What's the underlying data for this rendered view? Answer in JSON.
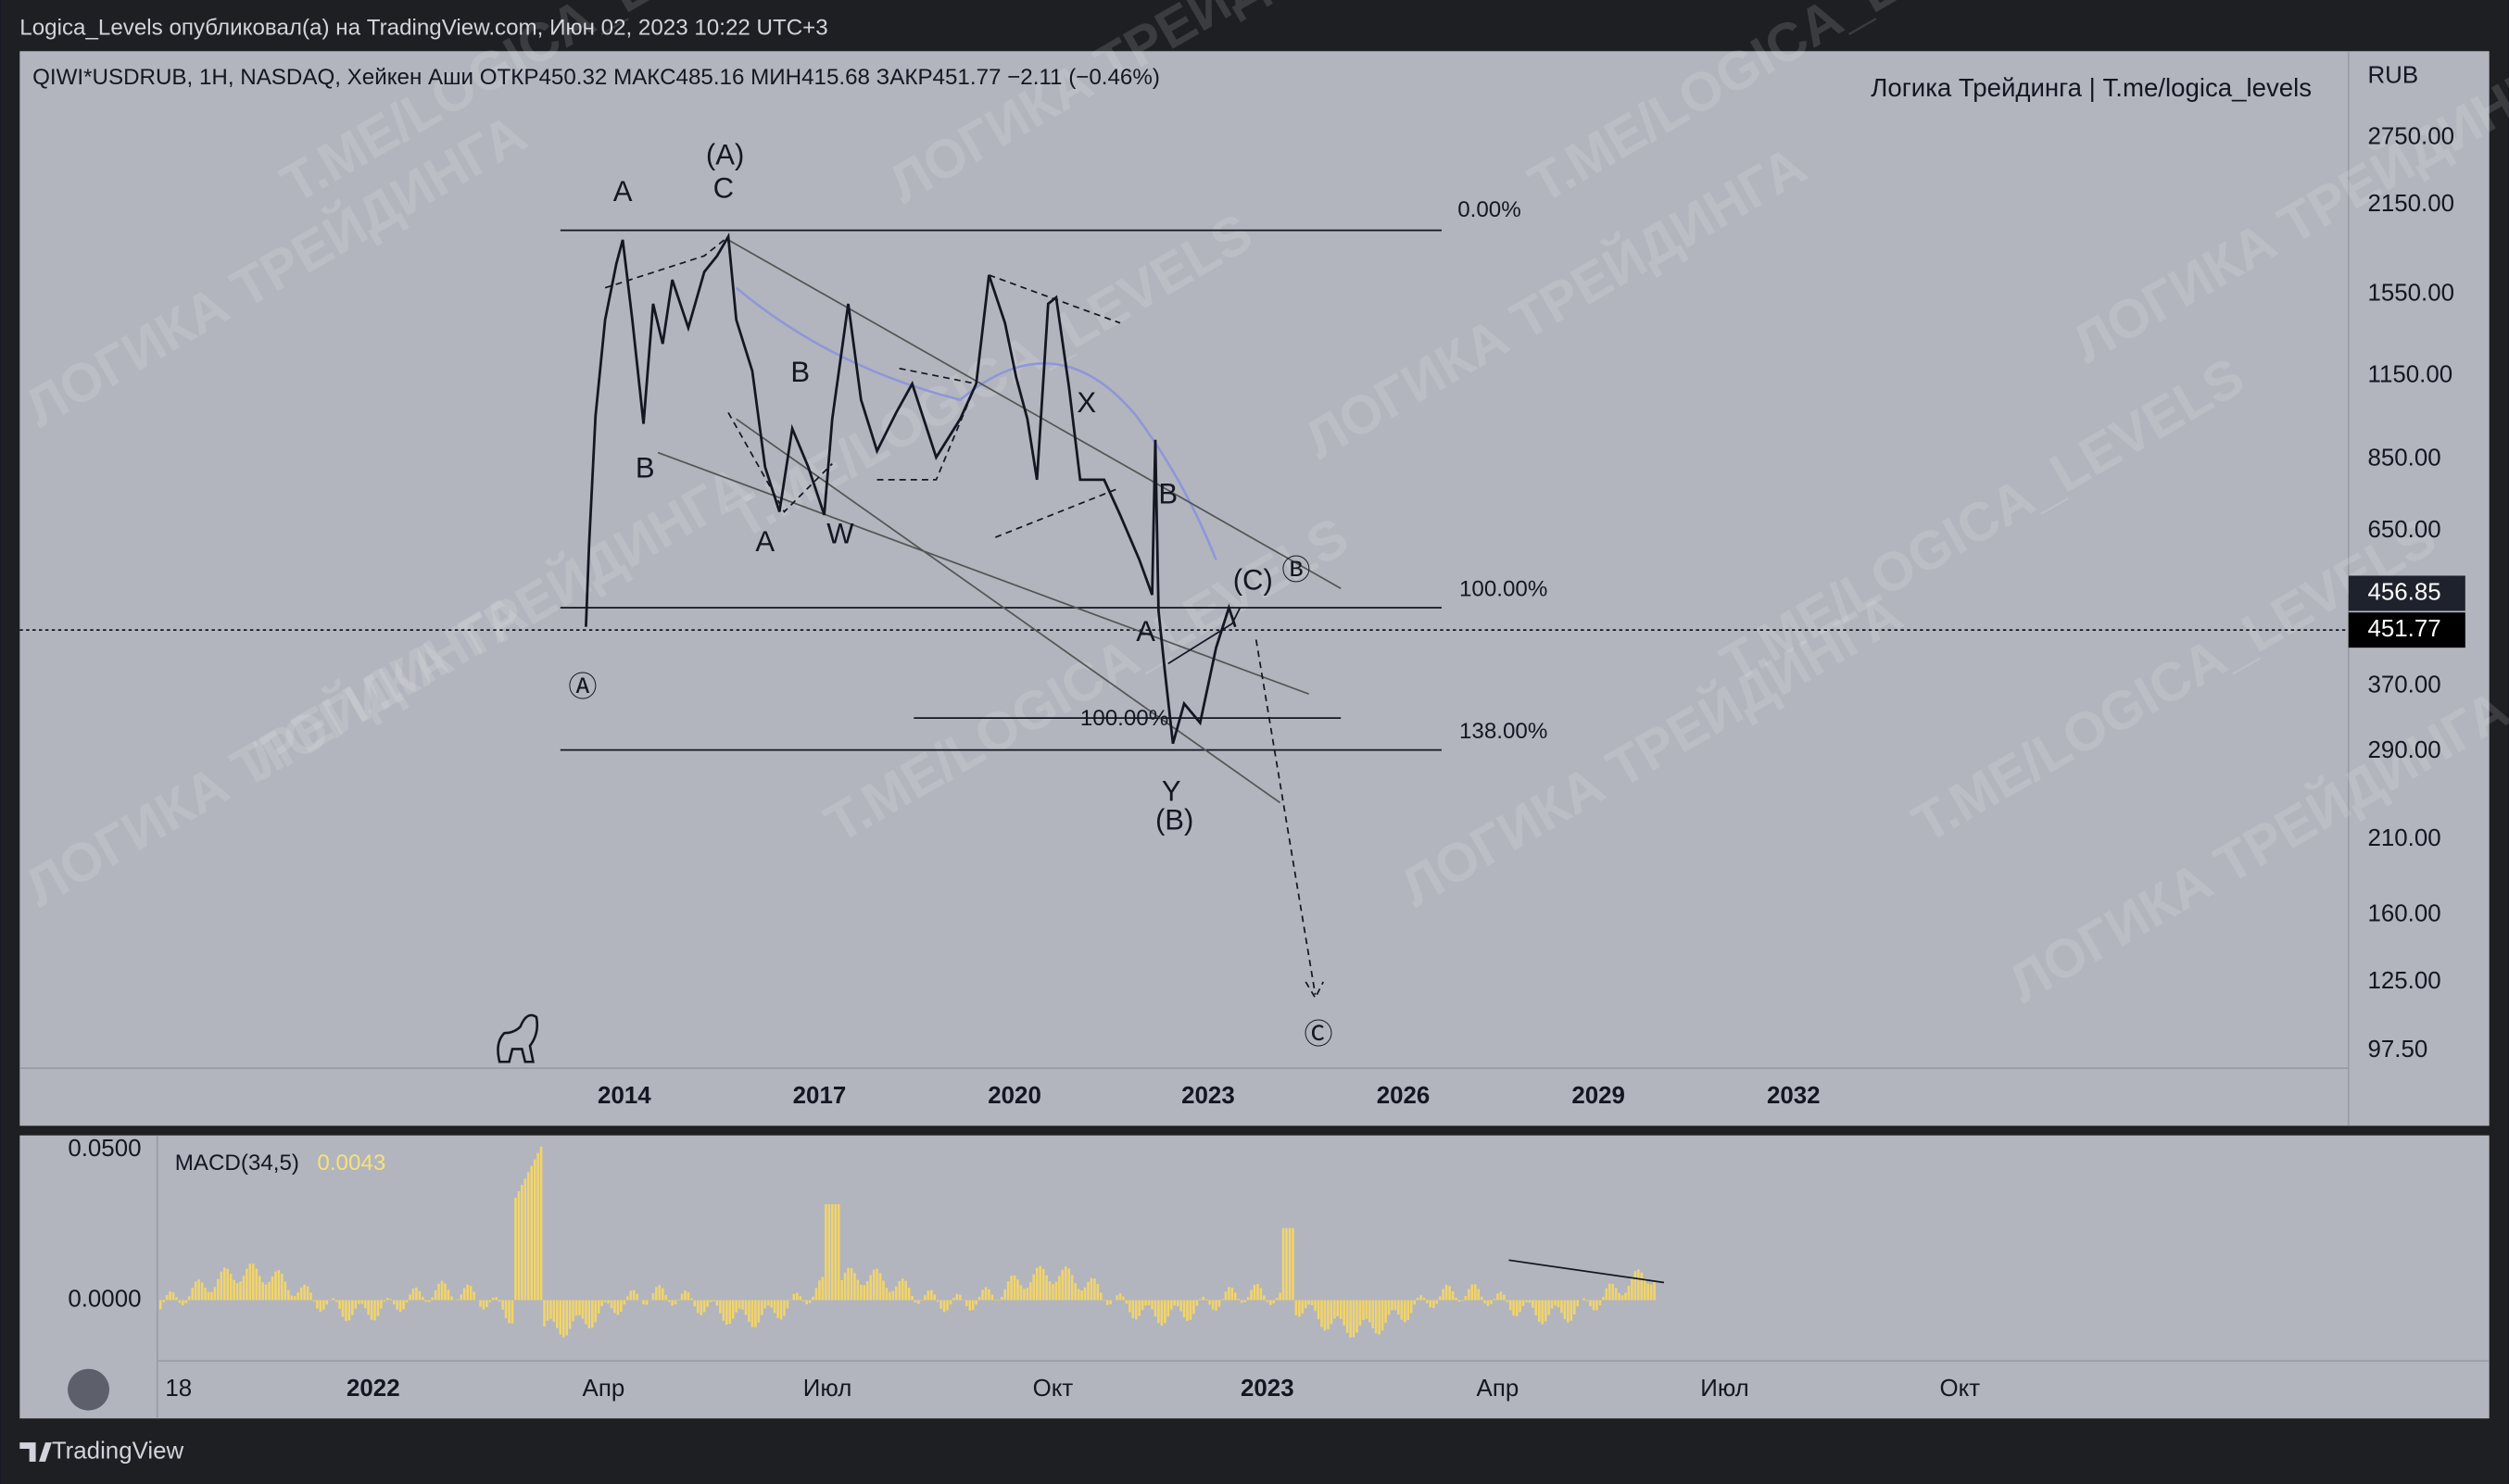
{
  "header": {
    "publisher": "Logica_Levels опубликовал(а) на TradingView.com, Июн 02, 2023 10:22 UTC+3"
  },
  "chart": {
    "symbol_line": "QIWI*USDRUB, 1H, NASDAQ, Хейкен Аши  ОТКР450.32  МАКС485.16  МИН415.68  ЗАКР451.77  −2.11 (−0.46%)",
    "signature": "Логика Трейдинга | T.me/logica_levels",
    "currency": "RUB",
    "price_ticks": [
      "2750.00",
      "2150.00",
      "1550.00",
      "1150.00",
      "850.00",
      "650.00",
      "370.00",
      "290.00",
      "210.00",
      "160.00",
      "125.00",
      "97.50"
    ],
    "current_prices": [
      "456.85",
      "451.77"
    ],
    "time_ticks": [
      "2014",
      "2017",
      "2020",
      "2023",
      "2026",
      "2029",
      "2032"
    ],
    "fib_levels": [
      "0.00%",
      "100.00%",
      "138.00%",
      "100.00%"
    ],
    "wave_labels": [
      "A",
      "(A)",
      "C",
      "B",
      "A",
      "W",
      "B",
      "X",
      "B",
      "A",
      "(C)",
      "Ⓑ",
      "Ⓐ",
      "Y",
      "(B)",
      "Ⓒ"
    ],
    "watermarks": [
      "T.ME/LOGICA_LEVELS",
      "ЛОГИКА ТРЕЙДИНГА"
    ]
  },
  "macd": {
    "legend": "MACD(34,5)",
    "value": "0.0043",
    "ticks": [
      "0.0500",
      "0.0000"
    ],
    "time_ticks": [
      "18",
      "2022",
      "Апр",
      "Июл",
      "Окт",
      "2023",
      "Апр",
      "Июл",
      "Окт"
    ]
  },
  "footer": {
    "brand": "TradingView"
  }
}
